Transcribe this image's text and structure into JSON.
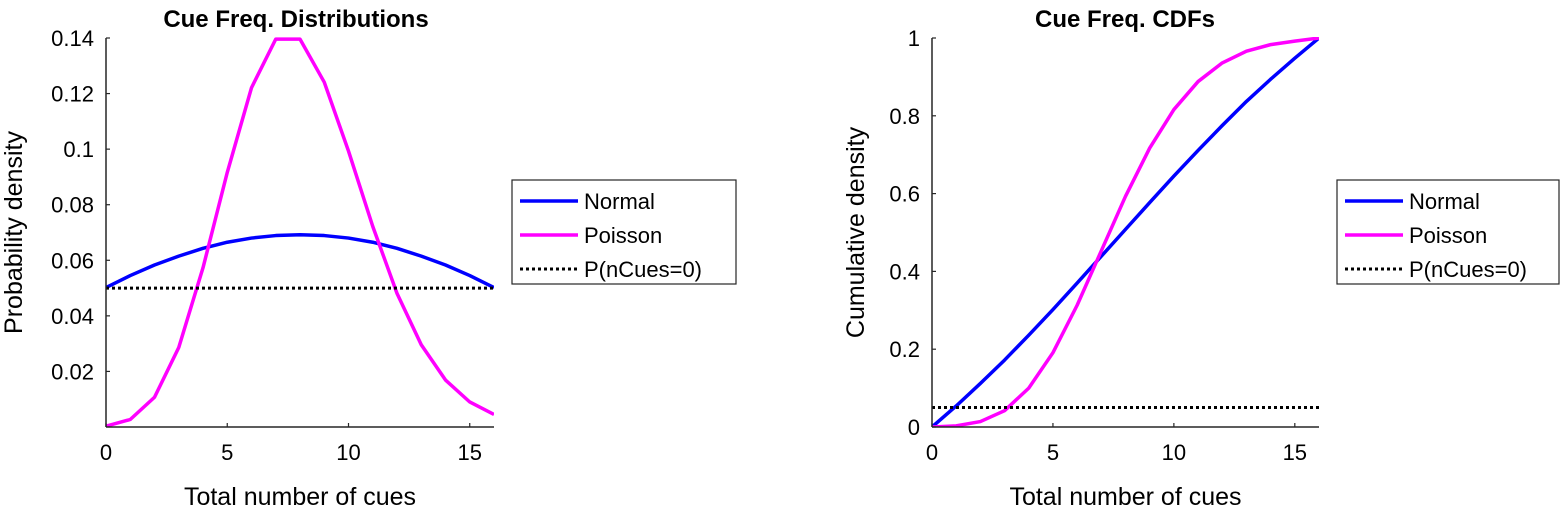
{
  "chart_data": [
    {
      "type": "line",
      "title": "Cue Freq. Distributions",
      "xlabel": "Total number of cues",
      "ylabel": "Probability density",
      "xlim": [
        0,
        16
      ],
      "ylim": [
        0,
        0.14
      ],
      "xticks": [
        0,
        5,
        10,
        15
      ],
      "xtick_labels": [
        "0",
        "5",
        "10",
        "15"
      ],
      "yticks": [
        0.02,
        0.04,
        0.06,
        0.08,
        0.1,
        0.12,
        0.14
      ],
      "ytick_labels": [
        "0.02",
        "0.04",
        "0.06",
        "0.08",
        "0.1",
        "0.12",
        "0.14"
      ],
      "grid": false,
      "legend_position": "outside-right",
      "series": [
        {
          "name": "Normal",
          "color": "#0000ff",
          "style": "solid",
          "x": [
            0,
            1,
            2,
            3,
            4,
            5,
            6,
            7,
            8,
            9,
            10,
            11,
            12,
            13,
            14,
            15,
            16
          ],
          "y": [
            0.0502,
            0.0545,
            0.0583,
            0.0615,
            0.0643,
            0.0665,
            0.068,
            0.0689,
            0.0692,
            0.0689,
            0.068,
            0.0665,
            0.0643,
            0.0615,
            0.0583,
            0.0545,
            0.0502
          ]
        },
        {
          "name": "Poisson",
          "color": "#ff00ff",
          "style": "solid",
          "x": [
            0,
            1,
            2,
            3,
            4,
            5,
            6,
            7,
            8,
            9,
            10,
            11,
            12,
            13,
            14,
            15,
            16
          ],
          "y": [
            0.0003,
            0.0027,
            0.0107,
            0.0286,
            0.0573,
            0.0916,
            0.1221,
            0.1396,
            0.1396,
            0.1241,
            0.0993,
            0.0722,
            0.0481,
            0.0296,
            0.0169,
            0.009,
            0.0045
          ]
        },
        {
          "name": "P(nCues=0)",
          "color": "#000000",
          "style": "dotted",
          "x": [
            0,
            16
          ],
          "y": [
            0.05,
            0.05
          ]
        }
      ]
    },
    {
      "type": "line",
      "title": "Cue Freq. CDFs",
      "xlabel": "Total number of cues",
      "ylabel": "Cumulative density",
      "xlim": [
        0,
        16
      ],
      "ylim": [
        0,
        1
      ],
      "xticks": [
        0,
        5,
        10,
        15
      ],
      "xtick_labels": [
        "0",
        "5",
        "10",
        "15"
      ],
      "yticks": [
        0,
        0.2,
        0.4,
        0.6,
        0.8,
        1
      ],
      "ytick_labels": [
        "0",
        "0.2",
        "0.4",
        "0.6",
        "0.8",
        "1"
      ],
      "grid": false,
      "legend_position": "outside-right",
      "series": [
        {
          "name": "Normal",
          "color": "#0000ff",
          "style": "solid",
          "x": [
            0,
            1,
            2,
            3,
            4,
            5,
            6,
            7,
            8,
            9,
            10,
            11,
            12,
            13,
            14,
            15,
            16
          ],
          "y": [
            0,
            0.054,
            0.112,
            0.172,
            0.236,
            0.302,
            0.37,
            0.439,
            0.508,
            0.577,
            0.645,
            0.711,
            0.775,
            0.837,
            0.894,
            0.948,
            1.0
          ]
        },
        {
          "name": "Poisson",
          "color": "#ff00ff",
          "style": "solid",
          "x": [
            0,
            1,
            2,
            3,
            4,
            5,
            6,
            7,
            8,
            9,
            10,
            11,
            12,
            13,
            14,
            15,
            16
          ],
          "y": [
            0,
            0.003,
            0.014,
            0.042,
            0.1,
            0.191,
            0.313,
            0.453,
            0.593,
            0.717,
            0.816,
            0.888,
            0.936,
            0.966,
            0.983,
            0.992,
            1.0
          ]
        },
        {
          "name": "P(nCues=0)",
          "color": "#000000",
          "style": "dotted",
          "x": [
            0,
            16
          ],
          "y": [
            0.05,
            0.05
          ]
        }
      ]
    }
  ]
}
